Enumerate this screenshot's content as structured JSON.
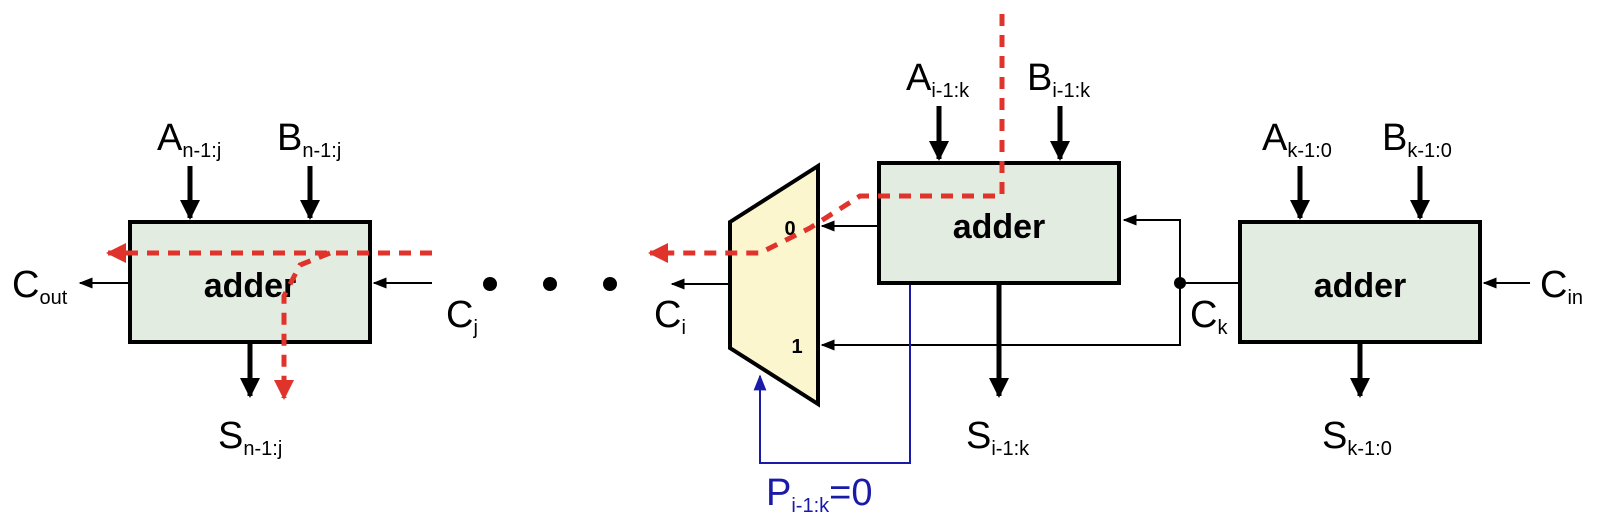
{
  "colors": {
    "block_fill": "#e3ece0",
    "mux_fill": "#fbf6cd",
    "critical_path": "#e0332b",
    "select_wire": "#1a1aa8",
    "wire": "#000000"
  },
  "blocks": {
    "left": {
      "label": "adder"
    },
    "middle": {
      "label": "adder"
    },
    "right": {
      "label": "adder"
    }
  },
  "mux": {
    "input0": "0",
    "input1": "1"
  },
  "labels": {
    "a_left": {
      "main": "A",
      "sub": "n-1:j"
    },
    "b_left": {
      "main": "B",
      "sub": "n-1:j"
    },
    "s_left": {
      "main": "S",
      "sub": "n-1:j"
    },
    "c_out": {
      "main": "C",
      "sub": "out"
    },
    "c_j": {
      "main": "C",
      "sub": "j"
    },
    "c_i": {
      "main": "C",
      "sub": "i"
    },
    "a_mid": {
      "main": "A",
      "sub": "i-1:k"
    },
    "b_mid": {
      "main": "B",
      "sub": "i-1:k"
    },
    "s_mid": {
      "main": "S",
      "sub": "i-1:k"
    },
    "c_k": {
      "main": "C",
      "sub": "k"
    },
    "a_right": {
      "main": "A",
      "sub": "k-1:0"
    },
    "b_right": {
      "main": "B",
      "sub": "k-1:0"
    },
    "s_right": {
      "main": "S",
      "sub": "k-1:0"
    },
    "c_in": {
      "main": "C",
      "sub": "in"
    },
    "p_select": {
      "main": "P",
      "sub": "i-1:k",
      "suffix": "=0"
    }
  }
}
